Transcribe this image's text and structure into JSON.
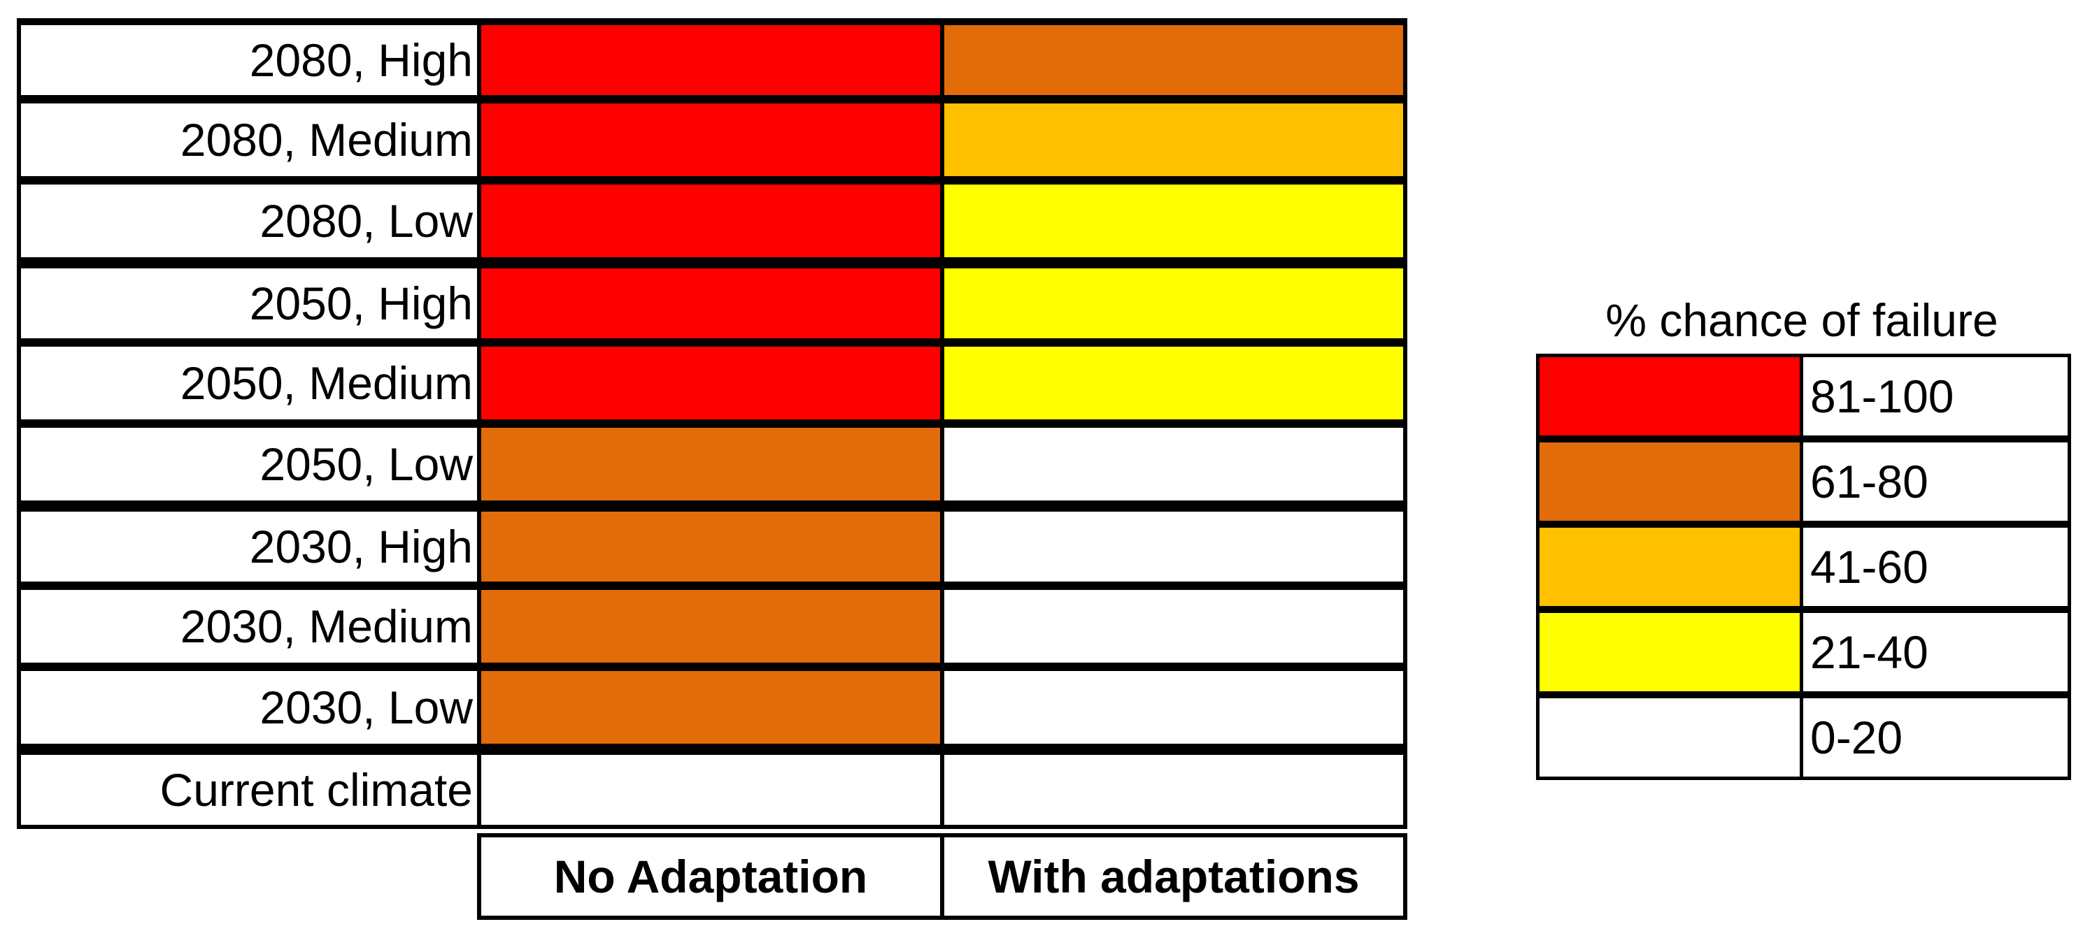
{
  "chart_data": {
    "type": "heatmap",
    "columns": [
      "No Adaptation",
      "With adaptations"
    ],
    "rows": [
      {
        "label": "2080, High",
        "values": [
          "81-100",
          "61-80"
        ]
      },
      {
        "label": "2080, Medium",
        "values": [
          "81-100",
          "41-60"
        ]
      },
      {
        "label": "2080, Low",
        "values": [
          "81-100",
          "21-40"
        ]
      },
      {
        "label": "2050, High",
        "values": [
          "81-100",
          "21-40"
        ]
      },
      {
        "label": "2050, Medium",
        "values": [
          "81-100",
          "21-40"
        ]
      },
      {
        "label": "2050, Low",
        "values": [
          "61-80",
          "0-20"
        ]
      },
      {
        "label": "2030, High",
        "values": [
          "61-80",
          "0-20"
        ]
      },
      {
        "label": "2030, Medium",
        "values": [
          "61-80",
          "0-20"
        ]
      },
      {
        "label": "2030, Low",
        "values": [
          "61-80",
          "0-20"
        ]
      },
      {
        "label": "Current climate",
        "values": [
          "0-20",
          "0-20"
        ]
      }
    ],
    "legend": {
      "title": "% chance of failure",
      "position": "right",
      "items": [
        {
          "range": "81-100",
          "color": "#ff0000"
        },
        {
          "range": "61-80",
          "color": "#e26b0a"
        },
        {
          "range": "41-60",
          "color": "#ffc000"
        },
        {
          "range": "21-40",
          "color": "#ffff00"
        },
        {
          "range": "0-20",
          "color": "#ffffff"
        }
      ]
    }
  }
}
